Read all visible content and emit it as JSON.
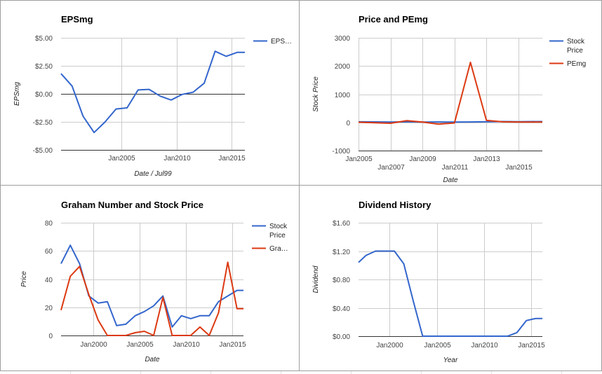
{
  "colors": {
    "blue": "#3366cc",
    "red": "#dc3912",
    "zero_line": "#333333",
    "grid": "#cccccc"
  },
  "chart_data": [
    {
      "id": "eps",
      "type": "line",
      "title": "EPSmg",
      "xlabel": "Date / Jul99",
      "ylabel": "EPSmg",
      "xlim": [
        1999.5,
        2016.2
      ],
      "ylim": [
        -5,
        5
      ],
      "xticks": [
        2005,
        2010,
        2015
      ],
      "xtick_labels": [
        "Jan2005",
        "Jan2010",
        "Jan2015"
      ],
      "yticks": [
        -5,
        -2.5,
        0,
        2.5,
        5
      ],
      "ytick_labels": [
        "-$5.00",
        "-$2.50",
        "$0.00",
        "$2.50",
        "$5.00"
      ],
      "zero_line": true,
      "legend": "right",
      "series": [
        {
          "name": "EPS…",
          "color": "#3366cc",
          "x": [
            1999.5,
            2000.5,
            2001.5,
            2002.5,
            2003.5,
            2004.5,
            2005.5,
            2006.5,
            2007.5,
            2008.5,
            2009.5,
            2010.5,
            2011.5,
            2012.5,
            2013.5,
            2014.5,
            2015.5,
            2016.2
          ],
          "y": [
            1.8,
            0.7,
            -2.0,
            -3.45,
            -2.5,
            -1.35,
            -1.25,
            0.35,
            0.4,
            -0.2,
            -0.55,
            -0.05,
            0.15,
            0.95,
            3.8,
            3.35,
            3.7,
            3.7
          ]
        }
      ]
    },
    {
      "id": "price_pe",
      "type": "line",
      "title": "Price and PEmg",
      "xlabel": "Date",
      "ylabel": "Stock Price",
      "xlim": [
        2005,
        2016.5
      ],
      "ylim": [
        -1000,
        3000
      ],
      "xticks": [
        2005,
        2007,
        2009,
        2011,
        2013,
        2015
      ],
      "xtick_labels": [
        "Jan2005",
        "Jan2007",
        "Jan2009",
        "Jan2011",
        "Jan2013",
        "Jan2015"
      ],
      "yticks": [
        -1000,
        0,
        1000,
        2000,
        3000
      ],
      "ytick_labels": [
        "-1000",
        "0",
        "1000",
        "2000",
        "3000"
      ],
      "zero_line": false,
      "legend": "right",
      "series": [
        {
          "name": "Stock Price",
          "color": "#3366cc",
          "x": [
            2005,
            2006,
            2007,
            2008,
            2009,
            2010,
            2011,
            2012,
            2013,
            2014,
            2015,
            2016.5
          ],
          "y": [
            20,
            18,
            12,
            20,
            10,
            15,
            12,
            15,
            20,
            30,
            25,
            30
          ]
        },
        {
          "name": "PEmg",
          "color": "#dc3912",
          "x": [
            2005,
            2006,
            2007,
            2008,
            2009,
            2010,
            2011,
            2012,
            2013,
            2014,
            2015,
            2016.5
          ],
          "y": [
            5,
            -10,
            -30,
            60,
            10,
            -60,
            -20,
            2130,
            70,
            20,
            10,
            10
          ]
        }
      ]
    },
    {
      "id": "graham",
      "type": "line",
      "title": "Graham Number and Stock Price",
      "xlabel": "Date",
      "ylabel": "Price",
      "xlim": [
        1996.5,
        2016.2
      ],
      "ylim": [
        0,
        80
      ],
      "xticks": [
        2000,
        2005,
        2010,
        2015
      ],
      "xtick_labels": [
        "Jan2000",
        "Jan2005",
        "Jan2010",
        "Jan2015"
      ],
      "yticks": [
        0,
        20,
        40,
        60,
        80
      ],
      "ytick_labels": [
        "0",
        "20",
        "40",
        "60",
        "80"
      ],
      "zero_line": false,
      "legend": "right",
      "series": [
        {
          "name": "Stock Price",
          "color": "#3366cc",
          "x": [
            1996.5,
            1997.5,
            1998.5,
            1999.5,
            2000.5,
            2001.5,
            2002.5,
            2003.5,
            2004.5,
            2005.5,
            2006.5,
            2007.5,
            2008.5,
            2009.5,
            2010.5,
            2011.5,
            2012.5,
            2013.5,
            2014.5,
            2015.5,
            2016.2
          ],
          "y": [
            51,
            64,
            51,
            28,
            23,
            24,
            7,
            8,
            14,
            17,
            21,
            28,
            6,
            14,
            12,
            14,
            14,
            24,
            28,
            32,
            32
          ]
        },
        {
          "name": "Gra…",
          "color": "#dc3912",
          "x": [
            1996.5,
            1997.5,
            1998.5,
            1999.5,
            2000.5,
            2001.5,
            2002.5,
            2003.5,
            2004.5,
            2005.5,
            2006.5,
            2007.5,
            2008.5,
            2009.5,
            2010.5,
            2011.5,
            2012.5,
            2013.5,
            2014.5,
            2015.5,
            2016.2
          ],
          "y": [
            18,
            42,
            49,
            29,
            11,
            0,
            0,
            0,
            2,
            3,
            0,
            27,
            0,
            0,
            0,
            6,
            0,
            16,
            52,
            19,
            19
          ]
        }
      ]
    },
    {
      "id": "dividend",
      "type": "line",
      "title": "Dividend History",
      "xlabel": "Year",
      "ylabel": "Dividend",
      "xlim": [
        1996.7,
        2016.2
      ],
      "ylim": [
        0,
        1.6
      ],
      "xticks": [
        2000,
        2005,
        2010,
        2015
      ],
      "xtick_labels": [
        "Jan2000",
        "Jan2005",
        "Jan2010",
        "Jan2015"
      ],
      "yticks": [
        0,
        0.4,
        0.8,
        1.2,
        1.6
      ],
      "ytick_labels": [
        "$0.00",
        "$0.40",
        "$0.80",
        "$1.20",
        "$1.60"
      ],
      "zero_line": false,
      "legend": "none",
      "series": [
        {
          "name": "",
          "color": "#3366cc",
          "x": [
            1996.7,
            1997.5,
            1998.5,
            1999.5,
            2000.5,
            2001.5,
            2002.5,
            2003.5,
            2004.5,
            2005.5,
            2006.5,
            2007.5,
            2008.5,
            2009.5,
            2010.5,
            2011.5,
            2012.5,
            2013.5,
            2014.5,
            2015.5,
            2016.2
          ],
          "y": [
            1.04,
            1.14,
            1.2,
            1.2,
            1.2,
            1.02,
            0.5,
            0,
            0,
            0,
            0,
            0,
            0,
            0,
            0,
            0,
            0,
            0.05,
            0.22,
            0.25,
            0.25
          ]
        }
      ]
    }
  ]
}
